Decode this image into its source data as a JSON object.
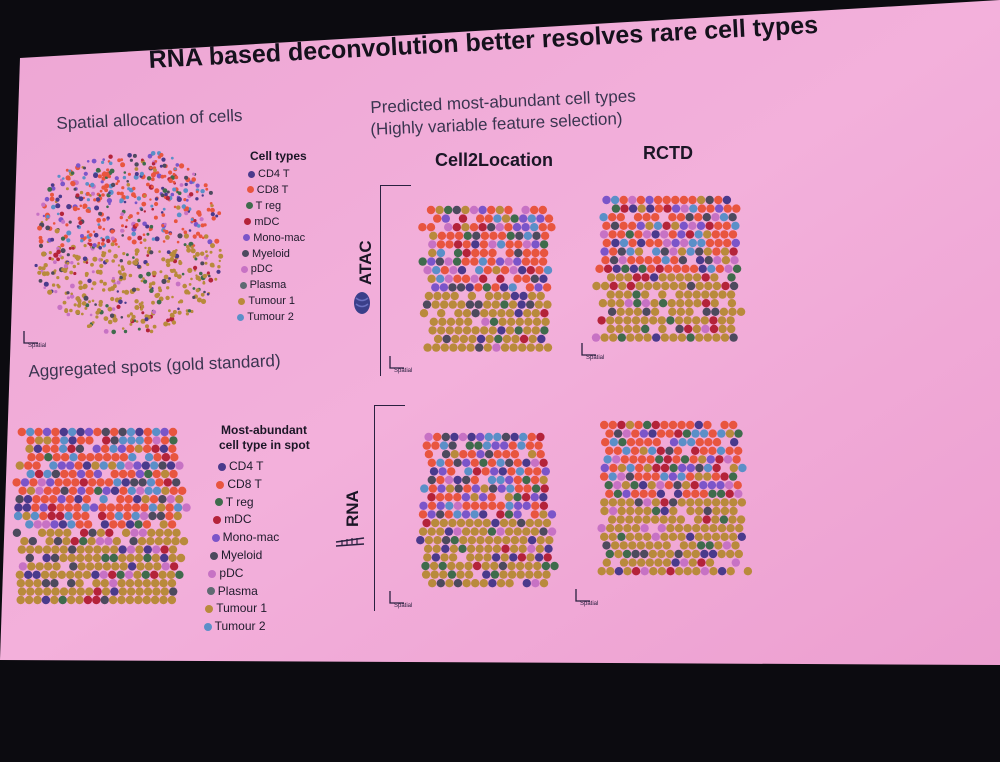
{
  "title": "RNA based deconvolution better resolves rare cell types",
  "left_top_heading": "Spatial allocation of cells",
  "left_bottom_heading": "Aggregated spots (gold standard)",
  "right_heading_line1": "Predicted most-abundant cell types",
  "right_heading_line2": "(Highly variable feature selection)",
  "column_cell2location": "Cell2Location",
  "column_rctd": "RCTD",
  "row_atac": "ATAC",
  "row_rna": "RNA",
  "legend1_title": "Cell types",
  "legend2_title_line1": "Most-abundant",
  "legend2_title_line2": "cell type in spot",
  "axis_spatial": "Spatial",
  "cell_types": [
    {
      "name": "CD4 T",
      "color": "#4a3a8c"
    },
    {
      "name": "CD8 T",
      "color": "#e8553f"
    },
    {
      "name": "T reg",
      "color": "#3f6b4c"
    },
    {
      "name": "mDC",
      "color": "#b4233a"
    },
    {
      "name": "Mono-mac",
      "color": "#7b55c9"
    },
    {
      "name": "Myeloid",
      "color": "#4d4a5e"
    },
    {
      "name": "pDC",
      "color": "#c772c4"
    },
    {
      "name": "Plasma",
      "color": "#5f6a72"
    },
    {
      "name": "Tumour 1",
      "color": "#b98a3c"
    },
    {
      "name": "Tumour 2",
      "color": "#5b8fc8"
    }
  ],
  "colors": {
    "slide_background": "#f2acd8",
    "screen_border": "#0c0b10"
  }
}
